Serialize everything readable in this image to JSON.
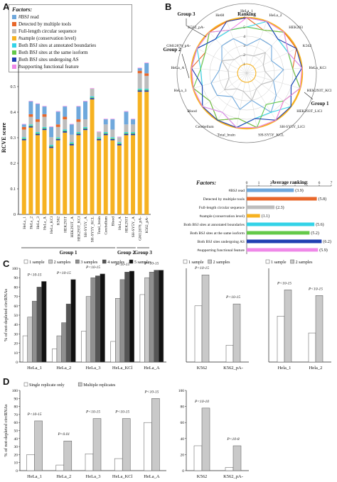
{
  "panels": {
    "a": "A",
    "b": "B",
    "c": "C",
    "d": "D"
  },
  "colors": {
    "bsj_read": "#6fa8dc",
    "multi_tools": "#e8672a",
    "full_length": "#bdbdbd",
    "sample": "#f6b221",
    "annotated": "#33d3e8",
    "same_isoform": "#64c94a",
    "undergoing_as": "#1f3fb2",
    "functional": "#ef88e8"
  },
  "factors": {
    "title": "Factors:",
    "items": [
      {
        "label": "#BSJ read",
        "color": "#6fa8dc"
      },
      {
        "label": "Detected by multiple tools",
        "color": "#e8672a"
      },
      {
        "label": "Full-length circular sequence",
        "color": "#bdbdbd"
      },
      {
        "label": "#sample (conservation level)",
        "color": "#f6b221"
      },
      {
        "label": "Both BSJ sites at annotated boundaries",
        "color": "#33d3e8"
      },
      {
        "label": "Both BSJ sites at the same isoform",
        "color": "#64c94a"
      },
      {
        "label": "Both BSJ sites undergoing AS",
        "color": "#1f3fb2"
      },
      {
        "label": "#supporting functional feature",
        "color": "#ef88e8"
      }
    ]
  },
  "chart_data": [
    {
      "id": "A",
      "type": "bar",
      "stacked": true,
      "ylabel": "RCVE score",
      "ylim": [
        0,
        0.6
      ],
      "yticks": [
        "0",
        "0.1",
        "0.2",
        "0.3",
        "0.4",
        "0.5"
      ],
      "categories": [
        "HeLa_1",
        "HeLa_2",
        "HeLa_3",
        "HeLa_A",
        "HeLa_KCl",
        "K562",
        "HEK293T",
        "HEK293T_A",
        "HEK293T_KCl",
        "SH-SY5Y_A",
        "SH-SY5Y_KCL",
        "Total_brain",
        "Cerebellum",
        "Blood",
        "HeLa_A",
        "HEK293T",
        "SH-SY5Y_A",
        "GM12878_pA-",
        "K562_pA-"
      ],
      "groups": [
        {
          "label": "Group 1",
          "from": 0,
          "to": 13
        },
        {
          "label": "Group 2",
          "from": 14,
          "to": 16
        },
        {
          "label": "Group 3",
          "from": 17,
          "to": 18
        }
      ],
      "series": [
        {
          "key": "sample",
          "values": [
            0.29,
            0.34,
            0.31,
            0.33,
            0.26,
            0.29,
            0.32,
            0.27,
            0.31,
            0.33,
            0.45,
            0.29,
            0.31,
            0.29,
            0.27,
            0.31,
            0.31,
            0.48,
            0.48
          ]
        },
        {
          "key": "undergoing_as",
          "values": [
            0.005,
            0.005,
            0.005,
            0.005,
            0.005,
            0.005,
            0.005,
            0.005,
            0.005,
            0.005,
            0.005,
            0.005,
            0.005,
            0.005,
            0.005,
            0.005,
            0.005,
            0.005,
            0.005
          ]
        },
        {
          "key": "same_isoform",
          "values": [
            0.003,
            0.003,
            0.003,
            0.003,
            0.003,
            0.003,
            0.003,
            0.003,
            0.003,
            0.003,
            0.003,
            0.003,
            0.003,
            0.003,
            0.003,
            0.003,
            0.003,
            0.003,
            0.003
          ]
        },
        {
          "key": "annotated",
          "values": [
            0.004,
            0.004,
            0.004,
            0.004,
            0.004,
            0.004,
            0.004,
            0.004,
            0.004,
            0.004,
            0.004,
            0.004,
            0.004,
            0.004,
            0.004,
            0.004,
            0.004,
            0.004,
            0.004
          ]
        },
        {
          "key": "full_length",
          "values": [
            0.03,
            0.03,
            0.04,
            0.04,
            0.03,
            0.04,
            0.04,
            0.03,
            0.04,
            0.03,
            0.03,
            0.02,
            0.03,
            0.03,
            0.02,
            0.03,
            0.03,
            0.06,
            0.05
          ]
        },
        {
          "key": "multi_tools",
          "values": [
            0.01,
            0.01,
            0.01,
            0.01,
            0.0,
            0.01,
            0.01,
            0.0,
            0.01,
            0.0,
            0.0,
            0.0,
            0.0,
            0.0,
            0.0,
            0.0,
            0.0,
            0.01,
            0.01
          ]
        },
        {
          "key": "bsj_read",
          "values": [
            0.01,
            0.05,
            0.06,
            0.03,
            0.04,
            0.05,
            0.04,
            0.04,
            0.05,
            0.07,
            0.0,
            0.0,
            0.02,
            0.04,
            0.0,
            0.05,
            0.02,
            0.01,
            0.04
          ]
        },
        {
          "key": "functional",
          "values": [
            0.002,
            0.002,
            0.002,
            0.002,
            0.002,
            0.002,
            0.002,
            0.002,
            0.002,
            0.002,
            0.002,
            0.002,
            0.002,
            0.002,
            0.002,
            0.002,
            0.002,
            0.002,
            0.002
          ]
        }
      ]
    },
    {
      "id": "B-radar",
      "type": "radar",
      "title": "Ranking",
      "axes": [
        "HeLa_1",
        "HeLa_2",
        "HEK293",
        "K562",
        "HeLa_KCl",
        "HEK293T_KCl",
        "HEK293T_LiCl",
        "SH-SY5Y_LiCl",
        "SH-SY5Y_KCL",
        "Total_brain",
        "Cerebellum",
        "Blood",
        "HeLa_3",
        "HeLa_A",
        "GM12878_pA-",
        "K562_pA-",
        "He68"
      ],
      "rings": [
        "1",
        "2",
        "3",
        "4",
        "5",
        "6"
      ],
      "groups": [
        "Group 1",
        "Group 2",
        "Group 3"
      ]
    },
    {
      "id": "B-bar",
      "type": "bar",
      "orientation": "horizontal",
      "title": "Average ranking",
      "xlim": [
        0,
        7
      ],
      "xticks": [
        "0",
        "1",
        "2",
        "3",
        "4",
        "5",
        "6",
        "7"
      ],
      "categories": [
        "#BSJ read",
        "Detected by multiple tools",
        "Full-length circular sequence",
        "#sample (conservation level)",
        "Both BSJ sites at annotated boundaries",
        "Both BSJ sites at the same isoform",
        "Both BSJ sites undergoing AS",
        "#supporting functional feature"
      ],
      "values": [
        3.9,
        5.8,
        2.3,
        1.1,
        5.6,
        5.2,
        6.2,
        5.9
      ],
      "labels": [
        "(3.9)",
        "(5.8)",
        "(2.3)",
        "(1.1)",
        "(5.6)",
        "(5.2)",
        "(6.2)",
        "(5.9)"
      ],
      "colors": [
        "#6fa8dc",
        "#e8672a",
        "#bdbdbd",
        "#f6b221",
        "#33d3e8",
        "#64c94a",
        "#1f3fb2",
        "#ef88e8"
      ]
    },
    {
      "id": "C-left",
      "type": "bar",
      "ylabel": "% of not-depleted circRNAs",
      "ylim": [
        0,
        100
      ],
      "yticks": [
        "0",
        "10",
        "20",
        "30",
        "40",
        "50",
        "60",
        "70",
        "80",
        "90",
        "100"
      ],
      "legend": [
        "1 sample",
        "2 samples",
        "3 samples",
        "4 samples",
        "5 samples"
      ],
      "legend_colors": [
        "#ffffff",
        "#c9c9c9",
        "#8f8f8f",
        "#555555",
        "#111111"
      ],
      "categories": [
        "HeLa_1",
        "HeLa_2",
        "HeLa_3",
        "HeLa_KCl",
        "HeLa_A"
      ],
      "series": [
        {
          "name": "1 sample",
          "values": [
            28,
            14,
            33,
            22,
            72
          ]
        },
        {
          "name": "2 samples",
          "values": [
            48,
            28,
            70,
            68,
            90
          ]
        },
        {
          "name": "3 samples",
          "values": [
            65,
            42,
            90,
            88,
            96
          ]
        },
        {
          "name": "4 samples",
          "values": [
            80,
            62,
            92,
            96,
            98
          ]
        },
        {
          "name": "5 samples",
          "values": [
            86,
            88,
            94,
            97,
            98
          ]
        }
      ],
      "annotations": [
        "P<10-15",
        "P<10-15",
        "P<10-15",
        "P<10-15",
        "P<10-15"
      ]
    },
    {
      "id": "C-mid",
      "type": "bar",
      "ylim": [
        0,
        100
      ],
      "legend": [
        "1 sample",
        "2 samples"
      ],
      "categories": [
        "K562",
        "K562_pA-"
      ],
      "series": [
        {
          "name": "1 sample",
          "values": [
            60,
            18
          ]
        },
        {
          "name": "2 samples",
          "values": [
            93,
            62
          ]
        }
      ],
      "annotations": [
        "P<10-15",
        "P<10-15"
      ]
    },
    {
      "id": "C-right",
      "type": "bar",
      "ylim": [
        0,
        100
      ],
      "legend": [
        "1 sample",
        "2 samples"
      ],
      "categories": [
        "Hela_1",
        "Hela_2"
      ],
      "series": [
        {
          "name": "1 sample",
          "values": [
            49,
            31
          ]
        },
        {
          "name": "2 samples",
          "values": [
            77,
            71
          ]
        }
      ],
      "annotations": [
        "P<10-15",
        "P<10-15"
      ]
    },
    {
      "id": "D-left",
      "type": "bar",
      "ylabel": "% of not-depleted circRNAs",
      "ylim": [
        0,
        100
      ],
      "yticks": [
        "0",
        "10",
        "20",
        "30",
        "40",
        "50",
        "60",
        "70",
        "80",
        "90",
        "100"
      ],
      "legend": [
        "Single replicate only",
        "Multiple replicates"
      ],
      "categories": [
        "HeLa_1",
        "HeLa_2",
        "HeLa_3",
        "HeLa_KCl",
        "HeLa_A"
      ],
      "series": [
        {
          "name": "Single replicate only",
          "values": [
            20,
            7,
            21,
            15,
            60
          ]
        },
        {
          "name": "Multiple replicates",
          "values": [
            62,
            37,
            65,
            65,
            90
          ]
        }
      ],
      "annotations": [
        "P<10-15",
        "P<0.01",
        "P<10-15",
        "P<10-15",
        "P<10-15"
      ]
    },
    {
      "id": "D-right",
      "type": "bar",
      "ylim": [
        0,
        100
      ],
      "yticks": [
        "0",
        "20",
        "40",
        "60",
        "80",
        "100"
      ],
      "categories": [
        "K562",
        "K562_pA-"
      ],
      "series": [
        {
          "name": "Single replicate only",
          "values": [
            31,
            4
          ]
        },
        {
          "name": "Multiple replicates",
          "values": [
            78,
            31
          ]
        }
      ],
      "annotations": [
        "P<10-10",
        "P<10-8"
      ]
    }
  ]
}
